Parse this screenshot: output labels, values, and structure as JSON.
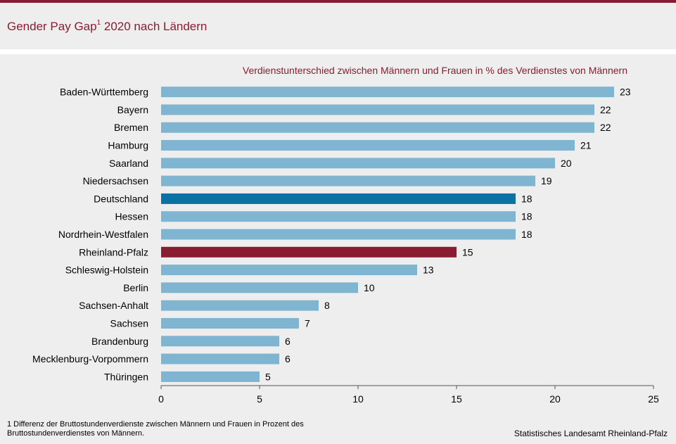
{
  "header": {
    "title": "Gender Pay Gap",
    "title_sup": "1",
    "title_suffix": " 2020 nach Ländern"
  },
  "chart_data": {
    "type": "bar",
    "orientation": "horizontal",
    "subtitle": "Verdienstunterschied  zwischen Männern  und Frauen  in % des Verdienstes von Männern",
    "categories": [
      "Baden-Württemberg",
      "Bayern",
      "Bremen",
      "Hamburg",
      "Saarland",
      "Niedersachsen",
      "Deutschland",
      "Hessen",
      "Nordrhein-Westfalen",
      "Rheinland-Pfalz",
      "Schleswig-Holstein",
      "Berlin",
      "Sachsen-Anhalt",
      "Sachsen",
      "Brandenburg",
      "Mecklenburg-Vorpommern",
      "Thüringen"
    ],
    "values": [
      23,
      22,
      22,
      21,
      20,
      19,
      18,
      18,
      18,
      15,
      13,
      10,
      8,
      7,
      6,
      6,
      5
    ],
    "bar_colors": [
      "#7fb5d0",
      "#7fb5d0",
      "#7fb5d0",
      "#7fb5d0",
      "#7fb5d0",
      "#7fb5d0",
      "#0b72a3",
      "#7fb5d0",
      "#7fb5d0",
      "#8a1c32",
      "#7fb5d0",
      "#7fb5d0",
      "#7fb5d0",
      "#7fb5d0",
      "#7fb5d0",
      "#7fb5d0",
      "#7fb5d0"
    ],
    "xlim": [
      0,
      25
    ],
    "xticks": [
      0,
      5,
      10,
      15,
      20,
      25
    ],
    "grid": false
  },
  "footnote": "1 Differenz der Bruttostundenverdienste zwischen Männern und Frauen in Prozent des Bruttostundenverdienstes von Männern.",
  "source": "Statistisches Landesamt  Rheinland-Pfalz",
  "colors": {
    "accent": "#8a1c32",
    "bar_default": "#7fb5d0",
    "bar_highlight_national": "#0b72a3",
    "bar_highlight_rlp": "#8a1c32",
    "background": "#eeeeee"
  }
}
